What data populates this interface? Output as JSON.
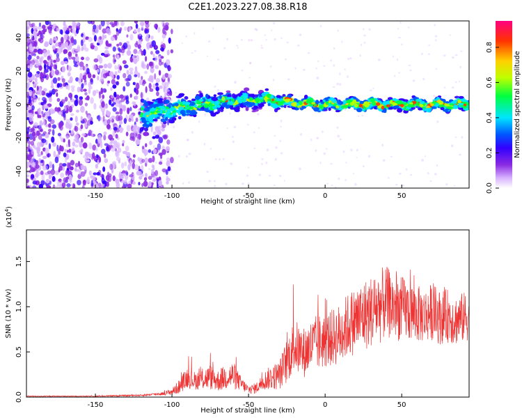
{
  "figure_title": "C2E1.2023.227.08.38.R18",
  "chart_data": [
    {
      "type": "heatmap",
      "name": "spectrogram",
      "xlabel": "Height of straight line (km)",
      "ylabel": "Frequency (Hz)",
      "xlim": [
        -195,
        94
      ],
      "ylim": [
        -50,
        50
      ],
      "xticks": [
        -150,
        -100,
        -50,
        0,
        50
      ],
      "xtick_labels": [
        "-150",
        "-100",
        "-50",
        "0",
        "50"
      ],
      "yticks": [
        -40,
        -20,
        0,
        20,
        40
      ],
      "ytick_labels": [
        "-40",
        "-20",
        "0",
        "20",
        "40"
      ],
      "signal_band": {
        "description_points_x": [
          -120,
          -100,
          -80,
          -60,
          -40,
          -20,
          0,
          20,
          40,
          60,
          80,
          94
        ],
        "center_freq": [
          -6,
          -3,
          0,
          2,
          3,
          1,
          0,
          0,
          0,
          0,
          0,
          0
        ],
        "half_width": [
          10,
          7,
          6,
          5,
          4,
          3,
          3,
          3,
          3,
          3,
          3,
          3
        ]
      },
      "colorbar": {
        "label": "Normalized spectral amplitude",
        "range": [
          0.0,
          0.95
        ],
        "ticks": [
          0.0,
          0.2,
          0.4,
          0.6,
          0.8
        ],
        "tick_labels": [
          "0.0",
          "0.2",
          "0.4",
          "0.6",
          "0.8"
        ],
        "colors": [
          "#ffffff",
          "#d8b4ff",
          "#8a2be2",
          "#3300ff",
          "#0055ff",
          "#00e5ff",
          "#00ff40",
          "#bfff00",
          "#ffd000",
          "#ff3300",
          "#ff0080"
        ]
      }
    },
    {
      "type": "line",
      "name": "snr",
      "xlabel": "Height of straight line (km)",
      "ylabel": "SNR (10 * v/v)",
      "y_multiplier_label": "(x10",
      "y_multiplier_exp": "4",
      "y_multiplier_close": ")",
      "xlim": [
        -195,
        94
      ],
      "ylim": [
        0,
        1.85
      ],
      "xticks": [
        -150,
        -100,
        -50,
        0,
        50
      ],
      "xtick_labels": [
        "-150",
        "-100",
        "-50",
        "0",
        "50"
      ],
      "yticks": [
        0.0,
        0.5,
        1.0,
        1.5
      ],
      "ytick_labels": [
        "0.0",
        "0.5",
        "1.0",
        "1.5"
      ],
      "series": [
        {
          "name": "SNR",
          "color": "#ee3333",
          "x": [
            -195,
            -150,
            -120,
            -105,
            -100,
            -95,
            -90,
            -85,
            -80,
            -75,
            -70,
            -65,
            -60,
            -55,
            -50,
            -45,
            -40,
            -35,
            -30,
            -25,
            -20,
            -15,
            -10,
            -5,
            0,
            5,
            10,
            15,
            20,
            25,
            30,
            35,
            40,
            45,
            50,
            55,
            60,
            65,
            70,
            75,
            80,
            85,
            90,
            94
          ],
          "values": [
            0.01,
            0.01,
            0.02,
            0.04,
            0.06,
            0.12,
            0.22,
            0.18,
            0.2,
            0.22,
            0.18,
            0.22,
            0.24,
            0.15,
            0.08,
            0.1,
            0.18,
            0.22,
            0.24,
            0.4,
            0.58,
            0.48,
            0.55,
            0.6,
            0.62,
            0.66,
            0.7,
            0.8,
            0.85,
            0.9,
            0.95,
            1.0,
            1.05,
            1.0,
            0.98,
            0.95,
            0.92,
            0.9,
            0.95,
            0.88,
            0.9,
            0.85,
            0.88,
            0.9
          ],
          "spread": [
            0.005,
            0.005,
            0.01,
            0.02,
            0.04,
            0.08,
            0.12,
            0.1,
            0.12,
            0.14,
            0.12,
            0.14,
            0.16,
            0.08,
            0.05,
            0.06,
            0.1,
            0.14,
            0.16,
            0.25,
            0.3,
            0.28,
            0.3,
            0.32,
            0.3,
            0.32,
            0.34,
            0.36,
            0.38,
            0.4,
            0.4,
            0.42,
            0.4,
            0.38,
            0.36,
            0.34,
            0.32,
            0.3,
            0.32,
            0.3,
            0.3,
            0.28,
            0.28,
            0.28
          ]
        }
      ]
    }
  ]
}
